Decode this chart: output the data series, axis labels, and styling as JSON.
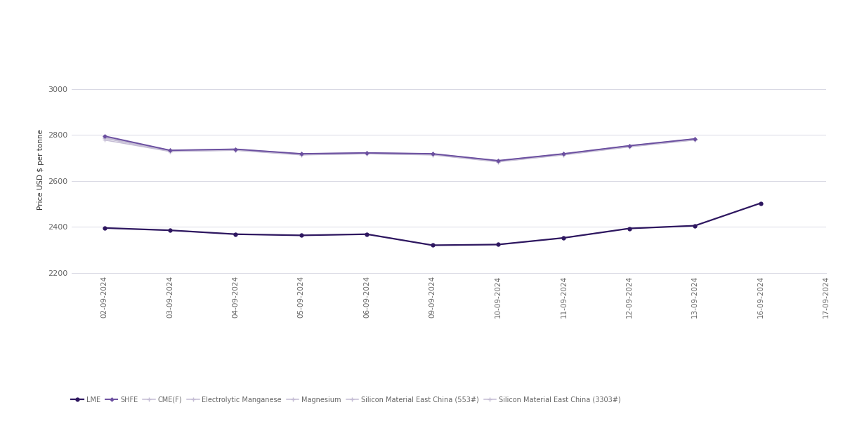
{
  "x_labels": [
    "02-09-2024",
    "03-09-2024",
    "04-09-2024",
    "05-09-2024",
    "06-09-2024",
    "09-09-2024",
    "10-09-2024",
    "11-09-2024",
    "12-09-2024",
    "13-09-2024",
    "16-09-2024",
    "17-09-2024"
  ],
  "LME": [
    2395,
    2385,
    2368,
    2363,
    2368,
    2320,
    2323,
    2352,
    2393,
    2405,
    2503,
    null
  ],
  "SHFE": [
    2795,
    2733,
    2738,
    2718,
    2722,
    2718,
    2688,
    2718,
    2753,
    2783,
    null,
    null
  ],
  "CME_F": [
    2395,
    2385,
    2368,
    2363,
    2368,
    2320,
    2323,
    2352,
    2393,
    2405,
    null,
    null
  ],
  "Electrolytic_Manganese": [
    2778,
    2728,
    2733,
    2713,
    2718,
    2713,
    2683,
    2713,
    2748,
    2778,
    null,
    null
  ],
  "Magnesium": [
    2788,
    2731,
    2736,
    2716,
    2720,
    2716,
    2686,
    2716,
    2751,
    2781,
    null,
    null
  ],
  "Silicon_553": [
    2785,
    2729,
    2734,
    2714,
    2718,
    2714,
    2684,
    2714,
    2749,
    2779,
    null,
    null
  ],
  "Silicon_3303": [
    2790,
    2733,
    2738,
    2718,
    2722,
    2718,
    2688,
    2718,
    2753,
    2783,
    null,
    null
  ],
  "LME_color": "#2e1760",
  "SHFE_color": "#6b4fa0",
  "CME_F_color": "#c5bdd5",
  "Electrolytic_Manganese_color": "#c5bdd5",
  "Magnesium_color": "#c5bdd5",
  "Silicon_553_color": "#c5bdd5",
  "Silicon_3303_color": "#c5bdd5",
  "ylabel": "Price USD $ per tonne",
  "ylim": [
    2200,
    3100
  ],
  "yticks": [
    2200,
    2400,
    2600,
    2800,
    3000
  ],
  "background_color": "#ffffff",
  "grid_color": "#d8d8e4",
  "tick_label_color": "#666666",
  "ylabel_color": "#333333",
  "legend_labels": [
    "LME",
    "SHFE",
    "CME(F)",
    "Electrolytic Manganese",
    "Magnesium",
    "Silicon Material East China (553#)",
    "Silicon Material East China (3303#)"
  ]
}
